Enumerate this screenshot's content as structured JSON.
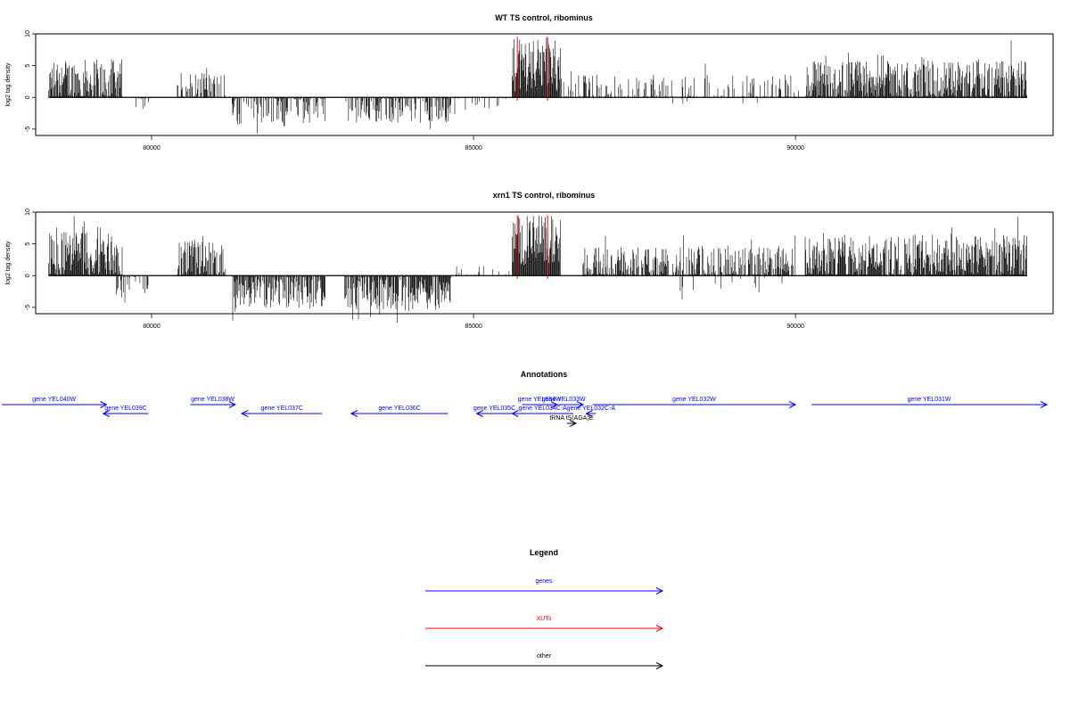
{
  "chart_data": [
    {
      "type": "bar",
      "title": "WT TS control, ribominus",
      "xlabel": "",
      "ylabel": "log2 tag density",
      "xlim": [
        78200,
        94000
      ],
      "ylim": [
        -6,
        10
      ],
      "x_ticks": [
        80000,
        85000,
        90000
      ],
      "x_tick_labels": [
        "80000",
        "85000",
        "90000"
      ],
      "y_ticks": [
        -5,
        0,
        5,
        10
      ],
      "y_tick_labels": [
        "-5",
        "0",
        "5",
        "10"
      ],
      "grid": false,
      "baseline": {
        "x_from": 78400,
        "x_to": 93600,
        "y": 0
      },
      "series": [
        {
          "name": "",
          "segments": [
            {
              "x_from": 78400,
              "x_to": 79550,
              "sign": 1,
              "mean": 2.5,
              "amp": 3.5,
              "density": 0.9
            },
            {
              "x_from": 79700,
              "x_to": 80000,
              "sign": -1,
              "mean": 0.8,
              "amp": 1.5,
              "density": 0.3
            },
            {
              "x_from": 80400,
              "x_to": 81150,
              "sign": 1,
              "mean": 1.8,
              "amp": 2.2,
              "density": 0.6
            },
            {
              "x_from": 81250,
              "x_to": 82700,
              "sign": -1,
              "mean": 1.8,
              "amp": 2.5,
              "density": 0.6
            },
            {
              "x_from": 83000,
              "x_to": 84650,
              "sign": -1,
              "mean": 1.8,
              "amp": 2.3,
              "density": 0.6
            },
            {
              "x_from": 84650,
              "x_to": 85600,
              "sign": -1,
              "mean": 0.8,
              "amp": 1.2,
              "density": 0.15
            },
            {
              "x_from": 85600,
              "x_to": 86350,
              "sign": 1,
              "mean": 5,
              "amp": 4.2,
              "density": 1.0
            },
            {
              "x_from": 86350,
              "x_to": 90100,
              "sign": 1,
              "mean": 1.4,
              "amp": 2.2,
              "density": 0.35
            },
            {
              "x_from": 88000,
              "x_to": 90000,
              "sign": -1,
              "mean": 0.3,
              "amp": 0.8,
              "density": 0.05
            },
            {
              "x_from": 90150,
              "x_to": 93600,
              "sign": 1,
              "mean": 2.6,
              "amp": 3.2,
              "density": 0.9
            }
          ]
        }
      ],
      "markers": [
        {
          "x": 85680,
          "color": "#ff0000"
        },
        {
          "x": 86150,
          "color": "#ff0000"
        }
      ]
    },
    {
      "type": "bar",
      "title": "xrn1 TS control, ribominus",
      "xlabel": "",
      "ylabel": "log2 tag density",
      "xlim": [
        78200,
        94000
      ],
      "ylim": [
        -6,
        10
      ],
      "x_ticks": [
        80000,
        85000,
        90000
      ],
      "x_tick_labels": [
        "80000",
        "85000",
        "90000"
      ],
      "y_ticks": [
        -5,
        0,
        5,
        10
      ],
      "y_tick_labels": [
        "-5",
        "0",
        "5",
        "10"
      ],
      "grid": false,
      "baseline": {
        "x_from": 78400,
        "x_to": 93600,
        "y": 0
      },
      "series": [
        {
          "name": "",
          "segments": [
            {
              "x_from": 78400,
              "x_to": 79550,
              "sign": 1,
              "mean": 3.2,
              "amp": 3.8,
              "density": 0.95
            },
            {
              "x_from": 79450,
              "x_to": 80000,
              "sign": -1,
              "mean": 1.5,
              "amp": 2,
              "density": 0.5
            },
            {
              "x_from": 80400,
              "x_to": 81150,
              "sign": 1,
              "mean": 2.5,
              "amp": 3,
              "density": 0.85
            },
            {
              "x_from": 81250,
              "x_to": 82700,
              "sign": -1,
              "mean": 2.2,
              "amp": 3,
              "density": 0.8
            },
            {
              "x_from": 83000,
              "x_to": 84650,
              "sign": -1,
              "mean": 2.5,
              "amp": 3,
              "density": 0.9
            },
            {
              "x_from": 84650,
              "x_to": 85600,
              "sign": 1,
              "mean": 0.5,
              "amp": 1,
              "density": 0.15
            },
            {
              "x_from": 85600,
              "x_to": 86350,
              "sign": 1,
              "mean": 5.5,
              "amp": 4,
              "density": 1.0
            },
            {
              "x_from": 86700,
              "x_to": 90000,
              "sign": 1,
              "mean": 2,
              "amp": 2.5,
              "density": 0.75
            },
            {
              "x_from": 88200,
              "x_to": 89800,
              "sign": -1,
              "mean": 0.8,
              "amp": 2,
              "density": 0.1
            },
            {
              "x_from": 90150,
              "x_to": 93600,
              "sign": 1,
              "mean": 3,
              "amp": 3.5,
              "density": 0.95
            }
          ]
        }
      ],
      "markers": [
        {
          "x": 85680,
          "color": "#ff0000"
        },
        {
          "x": 86150,
          "color": "#ff0000"
        }
      ]
    }
  ],
  "annotations": {
    "title": "Annotations",
    "xlim": [
      78200,
      94000
    ],
    "features": [
      {
        "label": "gene YEL040W",
        "start": 77600,
        "end": 79300,
        "strand": "+",
        "row": 0,
        "color": "#0000ff"
      },
      {
        "label": "gene YEL039C",
        "start": 79250,
        "end": 79950,
        "strand": "-",
        "row": 1,
        "color": "#0000ff"
      },
      {
        "label": "gene YEL038W",
        "start": 80600,
        "end": 81300,
        "strand": "+",
        "row": 0,
        "color": "#0000ff"
      },
      {
        "label": "gene YEL037C",
        "start": 81400,
        "end": 82650,
        "strand": "-",
        "row": 1,
        "color": "#0000ff"
      },
      {
        "label": "gene YEL036C",
        "start": 83100,
        "end": 84600,
        "strand": "-",
        "row": 1,
        "color": "#0000ff"
      },
      {
        "label": "gene YEL035C",
        "start": 85050,
        "end": 85600,
        "strand": "-",
        "row": 1,
        "color": "#0000ff"
      },
      {
        "label": "gene YEL034W",
        "start": 85750,
        "end": 86300,
        "strand": "+",
        "row": 0,
        "color": "#0000ff"
      },
      {
        "label": "gene YEL033W",
        "start": 86100,
        "end": 86700,
        "strand": "+",
        "row": 0,
        "color": "#0000ff"
      },
      {
        "label": "gene YEL034C-A",
        "start": 85600,
        "end": 86550,
        "strand": "-",
        "row": 1,
        "color": "#0000ff"
      },
      {
        "label": "gene YEL032C-A",
        "start": 86750,
        "end": 86900,
        "strand": "-",
        "row": 1,
        "color": "#0000ff"
      },
      {
        "label": "gene YEL032W",
        "start": 86850,
        "end": 90000,
        "strand": "+",
        "row": 0,
        "color": "#0000ff"
      },
      {
        "label": "gene YEL031W",
        "start": 90250,
        "end": 93920,
        "strand": "+",
        "row": 0,
        "color": "#0000ff"
      },
      {
        "label": "tRNA tS(AGA)E",
        "start": 86450,
        "end": 86590,
        "strand": "+",
        "row": 2,
        "color": "#000000"
      }
    ]
  },
  "legend": {
    "title": "Legend",
    "items": [
      {
        "label": "genes",
        "color": "#0000ff"
      },
      {
        "label": "XUTs",
        "color": "#ff0000"
      },
      {
        "label": "other",
        "color": "#000000"
      }
    ]
  }
}
